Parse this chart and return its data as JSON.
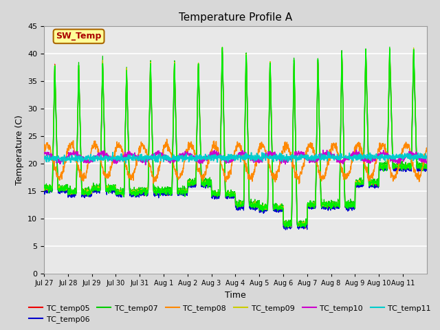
{
  "title": "Temperature Profile A",
  "xlabel": "Time",
  "ylabel": "Temperature (C)",
  "ylim": [
    0,
    45
  ],
  "yticks": [
    0,
    5,
    10,
    15,
    20,
    25,
    30,
    35,
    40,
    45
  ],
  "fig_bg": "#d8d8d8",
  "plot_bg": "#e8e8e8",
  "grid_color": "#ffffff",
  "sw_temp_label": "SW_Temp",
  "sw_temp_box_color": "#ffff99",
  "sw_temp_text_color": "#aa0000",
  "sw_temp_border_color": "#aa6600",
  "series_colors": {
    "SW_Temp": "#00ee00",
    "TC_temp05": "#ee0000",
    "TC_temp06": "#0000cc",
    "TC_temp07": "#00cc00",
    "TC_temp08": "#ff8800",
    "TC_temp09": "#cccc00",
    "TC_temp10": "#cc00cc",
    "TC_temp11": "#00cccc"
  },
  "date_labels": [
    "Jul 27",
    "Jul 28",
    "Jul 29",
    "Jul 30",
    "Jul 31",
    "Aug 1",
    "Aug 2",
    "Aug 3",
    "Aug 4",
    "Aug 5",
    "Aug 6",
    "Aug 7",
    "Aug 8",
    "Aug 9",
    "Aug 10",
    "Aug 11"
  ],
  "title_fontsize": 11,
  "label_fontsize": 9,
  "tick_fontsize": 8,
  "legend_fontsize": 8,
  "sw_peaks": [
    38.0,
    37.8,
    39.0,
    37.5,
    38.8,
    39.0,
    39.0,
    42.0,
    41.0,
    39.5,
    39.5,
    39.5,
    40.5,
    41.0,
    41.0,
    41.0
  ],
  "sw_troughs": [
    15.5,
    14.8,
    15.5,
    14.8,
    15.0,
    15.0,
    16.5,
    14.5,
    12.5,
    12.0,
    9.0,
    12.5,
    12.5,
    16.5,
    19.5,
    19.5
  ]
}
